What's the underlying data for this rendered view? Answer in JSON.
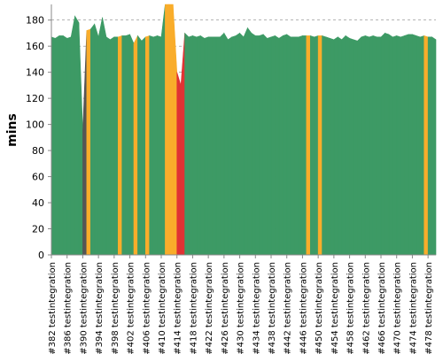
{
  "chart_data": {
    "type": "area",
    "ylabel": "mins",
    "ylim": [
      0,
      192
    ],
    "yticks": [
      0,
      20,
      40,
      60,
      80,
      100,
      120,
      140,
      160,
      180
    ],
    "grid": true,
    "x_tick_labels": [
      "#382 testintegration",
      "#386 testintegration",
      "#390 testintegration",
      "#394 testintegration",
      "#398 testintegration",
      "#402 testintegration",
      "#406 testintegration",
      "#410 testintegration",
      "#414 testintegration",
      "#418 testintegration",
      "#422 testintegration",
      "#426 testintegration",
      "#430 testintegration",
      "#434 testintegration",
      "#438 testintegration",
      "#442 testintegration",
      "#446 testintegration",
      "#450 testintegration",
      "#454 testintegration",
      "#458 testintegration",
      "#462 testintegration",
      "#466 testintegration",
      "#470 testintegration",
      "#474 testintegration",
      "#478 testintegration"
    ],
    "build_numbers": [
      382,
      383,
      384,
      385,
      386,
      387,
      388,
      389,
      390,
      391,
      392,
      393,
      394,
      395,
      396,
      397,
      398,
      399,
      400,
      401,
      402,
      403,
      404,
      405,
      406,
      407,
      408,
      409,
      410,
      411,
      412,
      413,
      414,
      415,
      416,
      417,
      418,
      419,
      420,
      421,
      422,
      423,
      424,
      425,
      426,
      427,
      428,
      429,
      430,
      431,
      432,
      433,
      434,
      435,
      436,
      437,
      438,
      439,
      440,
      441,
      442,
      443,
      444,
      445,
      446,
      447,
      448,
      449,
      450,
      451,
      452,
      453,
      454,
      455,
      456,
      457,
      458,
      459,
      460,
      461,
      462,
      463,
      464,
      465,
      466,
      467,
      468,
      469,
      470,
      471,
      472,
      473,
      474,
      475,
      476,
      477,
      478,
      479,
      480
    ],
    "values": [
      167,
      166,
      168,
      168,
      166,
      167,
      183,
      178,
      95,
      172,
      173,
      177,
      167,
      182,
      167,
      165,
      167,
      167,
      168,
      168,
      169,
      162,
      168,
      164,
      167,
      168,
      167,
      168,
      167,
      192,
      192,
      192,
      140,
      130,
      170,
      167,
      168,
      167,
      168,
      166,
      167,
      167,
      167,
      167,
      170,
      165,
      167,
      168,
      170,
      167,
      174,
      170,
      168,
      168,
      169,
      166,
      167,
      168,
      166,
      168,
      169,
      167,
      167,
      167,
      168,
      168,
      168,
      167,
      168,
      168,
      167,
      166,
      165,
      167,
      165,
      168,
      166,
      165,
      164,
      167,
      168,
      167,
      168,
      167,
      167,
      170,
      169,
      167,
      168,
      167,
      168,
      169,
      169,
      168,
      167,
      168,
      167,
      167,
      165
    ],
    "status": [
      "success",
      "success",
      "success",
      "success",
      "success",
      "success",
      "success",
      "success",
      "aborted",
      "unstable",
      "success",
      "success",
      "success",
      "success",
      "success",
      "success",
      "success",
      "unstable",
      "success",
      "success",
      "success",
      "unstable",
      "success",
      "success",
      "unstable",
      "success",
      "success",
      "success",
      "success",
      "unstable",
      "unstable",
      "unstable",
      "failure",
      "failure",
      "success",
      "success",
      "success",
      "success",
      "success",
      "success",
      "success",
      "success",
      "success",
      "success",
      "success",
      "success",
      "success",
      "success",
      "success",
      "success",
      "success",
      "success",
      "success",
      "success",
      "success",
      "success",
      "success",
      "success",
      "success",
      "success",
      "success",
      "success",
      "success",
      "success",
      "success",
      "unstable",
      "success",
      "success",
      "unstable",
      "success",
      "success",
      "success",
      "success",
      "success",
      "success",
      "success",
      "success",
      "success",
      "success",
      "success",
      "success",
      "success",
      "success",
      "success",
      "success",
      "success",
      "success",
      "success",
      "success",
      "success",
      "success",
      "success",
      "success",
      "success",
      "success",
      "unstable",
      "success",
      "success",
      "success"
    ],
    "colors": {
      "success": "#3d9a65",
      "unstable": "#f9ad2b",
      "failure": "#e03334",
      "aborted": "#555555"
    }
  }
}
